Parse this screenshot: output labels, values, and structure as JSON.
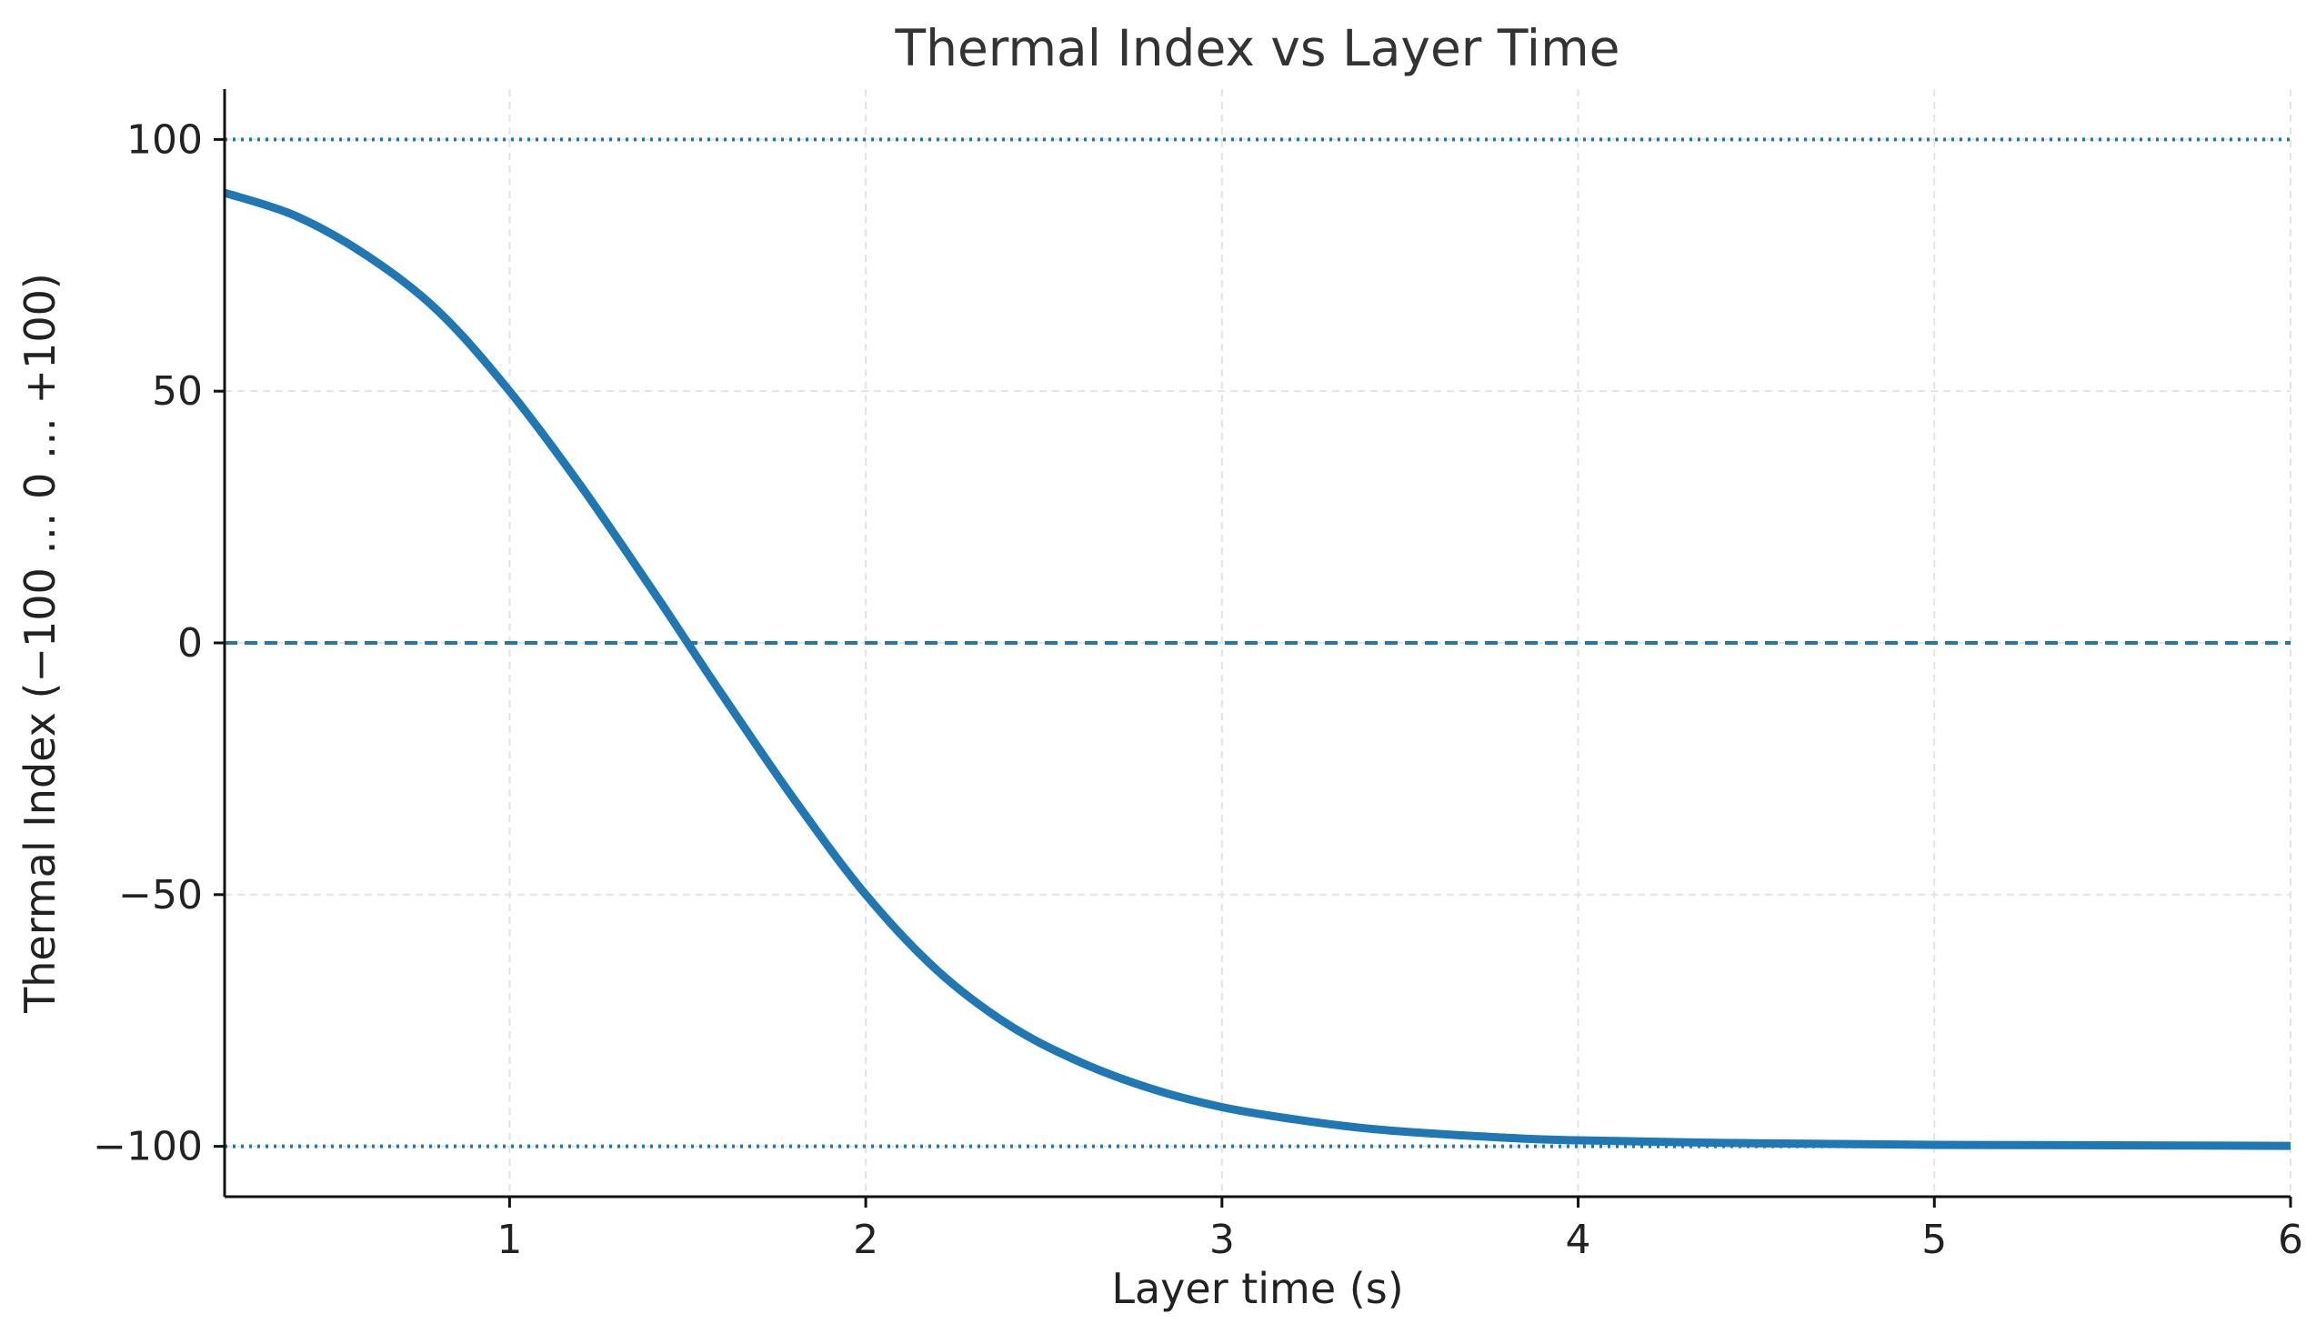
{
  "chart_data": {
    "type": "line",
    "title": "Thermal Index vs Layer Time",
    "xlabel": "Layer time (s)",
    "ylabel": "Thermal Index (−100 … 0 … +100)",
    "xlim": [
      0.2,
      6
    ],
    "ylim": [
      -110,
      110
    ],
    "xticks": [
      1,
      2,
      3,
      4,
      5,
      6
    ],
    "xtick_labels": [
      "1",
      "2",
      "3",
      "4",
      "5",
      "6"
    ],
    "yticks": [
      100,
      50,
      0,
      -50,
      -100
    ],
    "ytick_labels": [
      "100",
      "50",
      "0",
      "−50",
      "−100"
    ],
    "grid": true,
    "colors": {
      "line": "#1f77b4",
      "reference": "#1f77b4",
      "grid": "#e3e3e3"
    },
    "reference_lines": [
      {
        "y": 100,
        "style": "dotted"
      },
      {
        "y": 0,
        "style": "dashed"
      },
      {
        "y": -100,
        "style": "dotted"
      }
    ],
    "series": [
      {
        "x": [
          0.2,
          0.4,
          0.6,
          0.8,
          1.0,
          1.2,
          1.4,
          1.5,
          1.6,
          1.8,
          2.0,
          2.2,
          2.4,
          2.6,
          2.8,
          3.0,
          3.2,
          3.4,
          3.6,
          3.8,
          4.0,
          4.5,
          5.0,
          5.5,
          6.0
        ],
        "y": [
          89.4,
          84.8,
          76.9,
          65.9,
          50.0,
          31.2,
          10.6,
          0.0,
          -10.6,
          -31.2,
          -50.0,
          -65.0,
          -75.8,
          -83.2,
          -88.5,
          -92.2,
          -94.6,
          -96.4,
          -97.5,
          -98.3,
          -98.8,
          -99.4,
          -99.7,
          -99.8,
          -99.9
        ]
      }
    ]
  }
}
